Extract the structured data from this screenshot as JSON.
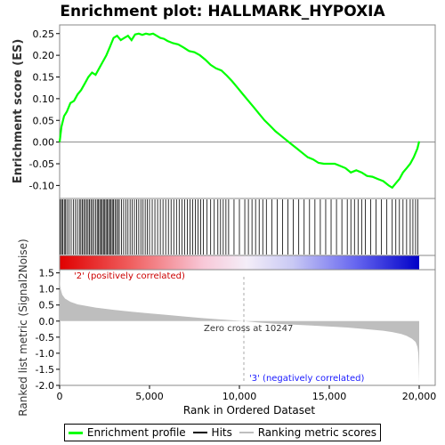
{
  "chart_data": {
    "type": "line",
    "title": "Enrichment plot: HALLMARK_HYPOXIA",
    "xlabel": "Rank in Ordered Dataset",
    "ylabel_top": "Enrichment score (ES)",
    "ylabel_bottom": "Ranked list metric (Signal2Noise)",
    "x_range": [
      0,
      20000
    ],
    "x_ticks": [
      0,
      5000,
      10000,
      15000,
      20000
    ],
    "x_tick_labels": [
      "0",
      "5,000",
      "10,000",
      "15,000",
      "20,000"
    ],
    "es_ylim": [
      -0.13,
      0.27
    ],
    "es_ticks": [
      -0.1,
      -0.05,
      0.0,
      0.05,
      0.1,
      0.15,
      0.2,
      0.25
    ],
    "es_tick_labels": [
      "-0.10",
      "-0.05",
      "0.00",
      "0.05",
      "0.10",
      "0.15",
      "0.20",
      "0.25"
    ],
    "metric_ylim": [
      -2.0,
      1.6
    ],
    "metric_ticks": [
      -2.0,
      -1.5,
      -1.0,
      -0.5,
      0.0,
      0.5,
      1.0,
      1.5
    ],
    "metric_tick_labels": [
      "-2.0",
      "-1.5",
      "-1.0",
      "-0.5",
      "0.0",
      "0.5",
      "1.0",
      "1.5"
    ],
    "series": [
      {
        "name": "Enrichment profile",
        "color": "#00ff00",
        "x": [
          0,
          100,
          250,
          400,
          600,
          800,
          1000,
          1200,
          1400,
          1600,
          1800,
          2000,
          2200,
          2400,
          2600,
          2800,
          3000,
          3200,
          3400,
          3600,
          3800,
          4000,
          4200,
          4400,
          4600,
          4800,
          5000,
          5200,
          5400,
          5600,
          5800,
          6000,
          6300,
          6600,
          6900,
          7200,
          7500,
          7800,
          8100,
          8400,
          8700,
          9000,
          9300,
          9600,
          9900,
          10200,
          10500,
          10800,
          11100,
          11400,
          11700,
          12000,
          12300,
          12600,
          12900,
          13200,
          13500,
          13800,
          14100,
          14400,
          14700,
          15000,
          15300,
          15600,
          15900,
          16200,
          16500,
          16800,
          17100,
          17400,
          17700,
          18000,
          18300,
          18500,
          18700,
          18900,
          19100,
          19300,
          19500,
          19700,
          19900,
          20000
        ],
        "y": [
          0.0,
          0.035,
          0.06,
          0.07,
          0.09,
          0.095,
          0.11,
          0.12,
          0.135,
          0.15,
          0.16,
          0.155,
          0.17,
          0.185,
          0.2,
          0.22,
          0.24,
          0.245,
          0.235,
          0.24,
          0.245,
          0.235,
          0.248,
          0.25,
          0.247,
          0.25,
          0.248,
          0.25,
          0.245,
          0.24,
          0.238,
          0.233,
          0.228,
          0.225,
          0.218,
          0.21,
          0.207,
          0.2,
          0.19,
          0.178,
          0.17,
          0.165,
          0.153,
          0.14,
          0.125,
          0.11,
          0.095,
          0.08,
          0.065,
          0.05,
          0.038,
          0.025,
          0.015,
          0.005,
          -0.005,
          -0.015,
          -0.025,
          -0.035,
          -0.04,
          -0.048,
          -0.05,
          -0.05,
          -0.05,
          -0.055,
          -0.06,
          -0.07,
          -0.065,
          -0.07,
          -0.078,
          -0.08,
          -0.085,
          -0.09,
          -0.1,
          -0.105,
          -0.095,
          -0.085,
          -0.07,
          -0.06,
          -0.05,
          -0.035,
          -0.015,
          0.002
        ]
      },
      {
        "name": "Hits",
        "color": "#000000",
        "x": [
          40,
          110,
          180,
          260,
          330,
          410,
          520,
          640,
          760,
          880,
          990,
          1100,
          1180,
          1260,
          1340,
          1420,
          1500,
          1580,
          1660,
          1740,
          1820,
          1900,
          2010,
          2090,
          2160,
          2230,
          2300,
          2370,
          2440,
          2510,
          2580,
          2650,
          2720,
          2790,
          2860,
          2930,
          3000,
          3080,
          3160,
          3240,
          3320,
          3440,
          3560,
          3680,
          3800,
          3920,
          4040,
          4160,
          4280,
          4400,
          4520,
          4640,
          4760,
          4880,
          5000,
          5150,
          5300,
          5450,
          5600,
          5750,
          5900,
          6050,
          6200,
          6350,
          6500,
          6650,
          6800,
          6950,
          7100,
          7250,
          7400,
          7550,
          7700,
          7850,
          8000,
          8200,
          8400,
          8600,
          8800,
          8950,
          9100,
          9250,
          9400,
          9700,
          10000,
          10300,
          10500,
          10700,
          10900,
          11100,
          11300,
          11500,
          11800,
          12100,
          12400,
          12700,
          13000,
          13300,
          13600,
          13900,
          14200,
          14500,
          14800,
          15100,
          15400,
          15700,
          16000,
          16200,
          16400,
          16600,
          16800,
          17000,
          17300,
          17600,
          17900,
          18200,
          18500,
          18700,
          18900,
          19100,
          19300,
          19500,
          19650,
          19800,
          19920
        ]
      },
      {
        "name": "Ranking metric scores",
        "color": "#bebebe",
        "x": [
          0,
          30,
          80,
          150,
          300,
          600,
          1000,
          2000,
          3000,
          4000,
          5000,
          6000,
          7000,
          8000,
          9000,
          10000,
          10247,
          11000,
          12000,
          13000,
          14000,
          15000,
          16000,
          17000,
          18000,
          18500,
          19000,
          19300,
          19600,
          19800,
          19900,
          19950,
          19980,
          20000
        ],
        "y": [
          1.5,
          1.1,
          0.95,
          0.82,
          0.7,
          0.6,
          0.52,
          0.42,
          0.35,
          0.29,
          0.24,
          0.19,
          0.14,
          0.09,
          0.05,
          0.01,
          0.0,
          -0.04,
          -0.08,
          -0.11,
          -0.14,
          -0.17,
          -0.2,
          -0.25,
          -0.3,
          -0.34,
          -0.4,
          -0.46,
          -0.55,
          -0.65,
          -0.8,
          -1.0,
          -1.4,
          -1.95
        ]
      }
    ],
    "annotations": {
      "positive": "'2' (positively correlated)",
      "negative": "'3' (negatively correlated)",
      "zero_cross": "Zero cross at 10247",
      "zero_cross_x": 10247
    },
    "legend_position": "bottom"
  }
}
